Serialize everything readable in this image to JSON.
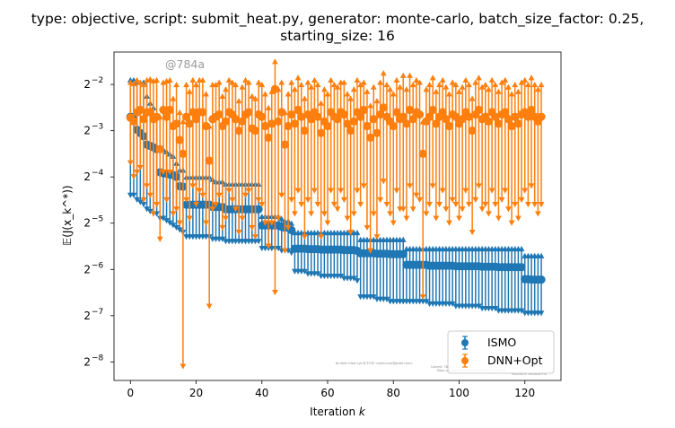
{
  "chart_data": {
    "type": "errorbar",
    "title_line1": "type: objective, script: submit_heat.py, generator: monte-carlo, batch_size_factor: 0.25,",
    "title_line2": "starting_size: 16",
    "xlabel": "Iteration",
    "xlabel_var": "k",
    "ylabel": "𝔼(J(x_k^*))",
    "xlim": [
      -5,
      131
    ],
    "ylim_log2": [
      -8.4,
      -1.3
    ],
    "yscale": "log2",
    "x_ticks": [
      0,
      20,
      40,
      60,
      80,
      100,
      120
    ],
    "y_ticks_exp": [
      -2,
      -3,
      -4,
      -5,
      -6,
      -7,
      -8
    ],
    "y_tick_base": "2",
    "watermark": "@784a",
    "credit_lines": [
      "By Kjetil Olsen Lye @ ETHZ <kjetil.o.lye@gmail.com>",
      "Commit: 784a",
      "Repo: git@github.com:kjetil-lye/learning_airfoils",
      "Hostname: MacBook-Pro"
    ],
    "legend_placement": "lower right",
    "series": [
      {
        "name": "ISMO",
        "color": "#1f77b4",
        "marker": "circle",
        "x": [
          0,
          1,
          2,
          3,
          4,
          5,
          6,
          7,
          8,
          9,
          10,
          11,
          12,
          13,
          14,
          15,
          16,
          17,
          18,
          19,
          20,
          21,
          22,
          23,
          24,
          25,
          26,
          27,
          28,
          29,
          30,
          31,
          32,
          33,
          34,
          35,
          36,
          37,
          38,
          39,
          40,
          41,
          42,
          43,
          44,
          45,
          46,
          47,
          48,
          49,
          50,
          51,
          52,
          53,
          54,
          55,
          56,
          57,
          58,
          59,
          60,
          61,
          62,
          63,
          64,
          65,
          66,
          67,
          68,
          69,
          70,
          71,
          72,
          73,
          74,
          75,
          76,
          77,
          78,
          79,
          80,
          81,
          82,
          83,
          84,
          85,
          86,
          87,
          88,
          89,
          90,
          91,
          92,
          93,
          94,
          95,
          96,
          97,
          98,
          99,
          100,
          101,
          102,
          103,
          104,
          105,
          106,
          107,
          108,
          109,
          110,
          111,
          112,
          113,
          114,
          115,
          116,
          117,
          118,
          119,
          120,
          121,
          122,
          123,
          124,
          125
        ],
        "mean_log2": [
          -2.7,
          -2.7,
          -2.98,
          -3.05,
          -3.12,
          -3.3,
          -3.33,
          -3.36,
          -3.4,
          -3.9,
          -3.92,
          -3.93,
          -3.95,
          -3.96,
          -4.0,
          -4.2,
          -4.21,
          -4.6,
          -4.6,
          -4.6,
          -4.6,
          -4.6,
          -4.6,
          -4.6,
          -4.6,
          -4.65,
          -4.65,
          -4.65,
          -4.65,
          -4.7,
          -4.7,
          -4.7,
          -4.7,
          -4.7,
          -4.7,
          -4.7,
          -4.7,
          -4.7,
          -4.7,
          -4.7,
          -5.05,
          -5.05,
          -5.05,
          -5.05,
          -5.05,
          -5.05,
          -5.08,
          -5.1,
          -5.1,
          -5.15,
          -5.55,
          -5.55,
          -5.55,
          -5.55,
          -5.56,
          -5.56,
          -5.56,
          -5.56,
          -5.57,
          -5.57,
          -5.57,
          -5.57,
          -5.57,
          -5.57,
          -5.57,
          -5.58,
          -5.58,
          -5.58,
          -5.58,
          -5.6,
          -5.65,
          -5.65,
          -5.65,
          -5.65,
          -5.65,
          -5.66,
          -5.66,
          -5.66,
          -5.66,
          -5.67,
          -5.67,
          -5.67,
          -5.67,
          -5.67,
          -5.9,
          -5.9,
          -5.9,
          -5.9,
          -5.9,
          -5.9,
          -5.9,
          -5.92,
          -5.92,
          -5.92,
          -5.92,
          -5.92,
          -5.92,
          -5.92,
          -5.92,
          -5.93,
          -5.93,
          -5.93,
          -5.93,
          -5.93,
          -5.93,
          -5.93,
          -5.93,
          -5.94,
          -5.94,
          -5.94,
          -5.94,
          -5.94,
          -5.95,
          -5.95,
          -5.95,
          -5.95,
          -5.95,
          -5.95,
          -5.95,
          -5.95,
          -6.21,
          -6.21,
          -6.22,
          -6.22,
          -6.22,
          -6.22
        ],
        "upper_log2": [
          -1.9,
          -1.9,
          -1.95,
          -1.95,
          -1.95,
          -2.25,
          -2.4,
          -2.5,
          -2.7,
          -3.4,
          -3.4,
          -3.45,
          -3.5,
          -3.55,
          -3.7,
          -3.85,
          -3.85,
          -4.0,
          -4.0,
          -4.0,
          -4.0,
          -4.0,
          -4.0,
          -4.0,
          -4.0,
          -4.05,
          -4.1,
          -4.1,
          -4.1,
          -4.15,
          -4.15,
          -4.15,
          -4.15,
          -4.15,
          -4.15,
          -4.15,
          -4.15,
          -4.15,
          -4.15,
          -4.15,
          -4.85,
          -4.85,
          -4.85,
          -4.85,
          -4.85,
          -4.85,
          -4.9,
          -4.95,
          -4.95,
          -5.0,
          -5.2,
          -5.2,
          -5.2,
          -5.2,
          -5.2,
          -5.2,
          -5.2,
          -5.2,
          -5.2,
          -5.2,
          -5.2,
          -5.2,
          -5.2,
          -5.2,
          -5.2,
          -5.2,
          -5.2,
          -5.2,
          -5.2,
          -5.2,
          -5.35,
          -5.35,
          -5.35,
          -5.35,
          -5.35,
          -5.35,
          -5.35,
          -5.35,
          -5.35,
          -5.35,
          -5.35,
          -5.35,
          -5.35,
          -5.35,
          -5.55,
          -5.55,
          -5.55,
          -5.55,
          -5.55,
          -5.55,
          -5.55,
          -5.55,
          -5.55,
          -5.55,
          -5.55,
          -5.55,
          -5.55,
          -5.55,
          -5.55,
          -5.55,
          -5.55,
          -5.55,
          -5.55,
          -5.55,
          -5.55,
          -5.55,
          -5.55,
          -5.55,
          -5.55,
          -5.55,
          -5.55,
          -5.55,
          -5.55,
          -5.55,
          -5.55,
          -5.55,
          -5.55,
          -5.55,
          -5.55,
          -5.55,
          -5.7,
          -5.7,
          -5.7,
          -5.7,
          -5.7,
          -5.7
        ],
        "lower_log2": [
          -4.4,
          -4.4,
          -4.5,
          -4.55,
          -4.6,
          -4.7,
          -4.75,
          -4.8,
          -4.8,
          -4.9,
          -4.9,
          -4.95,
          -5.0,
          -5.05,
          -5.1,
          -5.15,
          -5.2,
          -5.3,
          -5.3,
          -5.3,
          -5.3,
          -5.3,
          -5.3,
          -5.3,
          -5.3,
          -5.35,
          -5.35,
          -5.35,
          -5.35,
          -5.4,
          -5.4,
          -5.4,
          -5.4,
          -5.4,
          -5.4,
          -5.4,
          -5.4,
          -5.4,
          -5.4,
          -5.4,
          -5.55,
          -5.55,
          -5.55,
          -5.55,
          -5.55,
          -5.55,
          -5.6,
          -5.6,
          -5.6,
          -5.65,
          -6.05,
          -6.05,
          -6.05,
          -6.05,
          -6.1,
          -6.1,
          -6.1,
          -6.1,
          -6.15,
          -6.15,
          -6.15,
          -6.15,
          -6.15,
          -6.15,
          -6.15,
          -6.2,
          -6.2,
          -6.2,
          -6.2,
          -6.25,
          -6.6,
          -6.6,
          -6.6,
          -6.6,
          -6.6,
          -6.65,
          -6.65,
          -6.65,
          -6.65,
          -6.7,
          -6.7,
          -6.7,
          -6.7,
          -6.7,
          -6.7,
          -6.7,
          -6.7,
          -6.7,
          -6.7,
          -6.7,
          -6.7,
          -6.75,
          -6.75,
          -6.75,
          -6.75,
          -6.75,
          -6.75,
          -6.75,
          -6.75,
          -6.8,
          -6.8,
          -6.8,
          -6.8,
          -6.8,
          -6.8,
          -6.8,
          -6.8,
          -6.85,
          -6.85,
          -6.85,
          -6.85,
          -6.85,
          -6.9,
          -6.9,
          -6.9,
          -6.9,
          -6.9,
          -6.9,
          -6.9,
          -6.9,
          -6.95,
          -6.95,
          -6.95,
          -6.95,
          -6.95,
          -6.95
        ]
      },
      {
        "name": "DNN+Opt",
        "color": "#ff7f0e",
        "marker": "circle",
        "x": [
          0,
          1,
          2,
          3,
          4,
          5,
          6,
          7,
          8,
          9,
          10,
          11,
          12,
          13,
          14,
          15,
          16,
          17,
          18,
          19,
          20,
          21,
          22,
          23,
          24,
          25,
          26,
          27,
          28,
          29,
          30,
          31,
          32,
          33,
          34,
          35,
          36,
          37,
          38,
          39,
          40,
          41,
          42,
          43,
          44,
          45,
          46,
          47,
          48,
          49,
          50,
          51,
          52,
          53,
          54,
          55,
          56,
          57,
          58,
          59,
          60,
          61,
          62,
          63,
          64,
          65,
          66,
          67,
          68,
          69,
          70,
          71,
          72,
          73,
          74,
          75,
          76,
          77,
          78,
          79,
          80,
          81,
          82,
          83,
          84,
          85,
          86,
          87,
          88,
          89,
          90,
          91,
          92,
          93,
          94,
          95,
          96,
          97,
          98,
          99,
          100,
          101,
          102,
          103,
          104,
          105,
          106,
          107,
          108,
          109,
          110,
          111,
          112,
          113,
          114,
          115,
          116,
          117,
          118,
          119,
          120,
          121,
          122,
          123,
          124,
          125
        ],
        "mean_log2": [
          -2.72,
          -2.8,
          -2.6,
          -2.55,
          -2.75,
          -2.6,
          -2.6,
          -2.75,
          -2.7,
          -3.4,
          -2.55,
          -2.7,
          -2.55,
          -2.9,
          -2.85,
          -3.2,
          -3.5,
          -2.7,
          -2.85,
          -2.6,
          -2.75,
          -2.6,
          -2.6,
          -2.9,
          -3.65,
          -2.75,
          -2.7,
          -2.65,
          -2.9,
          -2.8,
          -2.6,
          -2.65,
          -2.75,
          -3.0,
          -2.8,
          -2.65,
          -2.6,
          -2.95,
          -3.0,
          -2.65,
          -2.7,
          -2.9,
          -3.15,
          -2.85,
          -2.1,
          -2.8,
          -2.6,
          -3.3,
          -2.9,
          -2.65,
          -2.85,
          -2.55,
          -2.7,
          -3.0,
          -2.65,
          -2.75,
          -2.6,
          -2.7,
          -3.05,
          -2.8,
          -2.9,
          -2.6,
          -2.7,
          -2.75,
          -2.6,
          -2.65,
          -2.85,
          -3.0,
          -2.8,
          -2.6,
          -2.7,
          -2.55,
          -2.9,
          -3.15,
          -2.75,
          -3.05,
          -2.65,
          -2.5,
          -2.7,
          -2.8,
          -2.9,
          -2.6,
          -2.75,
          -2.7,
          -2.85,
          -2.55,
          -2.75,
          -2.6,
          -2.65,
          -3.5,
          -2.8,
          -2.7,
          -2.55,
          -2.85,
          -2.7,
          -2.6,
          -2.75,
          -2.9,
          -2.65,
          -2.7,
          -2.85,
          -2.75,
          -2.6,
          -2.7,
          -3.0,
          -2.65,
          -2.55,
          -2.75,
          -2.7,
          -2.8,
          -2.6,
          -2.7,
          -2.85,
          -2.65,
          -2.6,
          -2.75,
          -2.9,
          -2.7,
          -2.85,
          -2.65,
          -2.6,
          -2.7,
          -2.55,
          -2.7,
          -2.8,
          -2.7
        ],
        "upper_log2": [
          -1.95,
          -1.98,
          -1.9,
          -1.95,
          -2.0,
          -1.9,
          -1.88,
          -1.92,
          -1.9,
          -2.7,
          -1.95,
          -1.92,
          -1.9,
          -2.3,
          -2.0,
          -2.6,
          -2.8,
          -2.0,
          -2.15,
          -1.9,
          -2.0,
          -1.9,
          -1.9,
          -2.2,
          -2.9,
          -2.0,
          -2.0,
          -1.95,
          -2.25,
          -2.1,
          -1.9,
          -1.95,
          -2.0,
          -2.35,
          -2.05,
          -1.9,
          -1.95,
          -2.25,
          -2.3,
          -1.95,
          -2.0,
          -2.2,
          -2.5,
          -2.15,
          -1.5,
          -2.1,
          -1.95,
          -2.6,
          -2.2,
          -1.95,
          -2.1,
          -1.85,
          -2.0,
          -2.3,
          -1.95,
          -2.05,
          -1.9,
          -2.0,
          -2.4,
          -2.1,
          -2.2,
          -1.9,
          -2.0,
          -2.05,
          -1.95,
          -1.95,
          -2.2,
          -2.3,
          -2.1,
          -1.9,
          -2.0,
          -1.95,
          -2.15,
          -2.45,
          -2.05,
          -2.35,
          -1.95,
          -1.75,
          -2.0,
          -2.1,
          -2.2,
          -1.9,
          -2.05,
          -1.8,
          -2.1,
          -1.8,
          -2.0,
          -1.9,
          -1.95,
          -2.8,
          -2.1,
          -2.0,
          -1.85,
          -2.15,
          -2.0,
          -1.9,
          -2.05,
          -2.2,
          -1.95,
          -2.0,
          -2.15,
          -2.05,
          -1.9,
          -2.0,
          -2.3,
          -1.95,
          -1.85,
          -2.05,
          -2.0,
          -2.1,
          -1.9,
          -2.0,
          -2.15,
          -1.95,
          -1.9,
          -2.05,
          -2.2,
          -2.0,
          -2.15,
          -1.95,
          -1.9,
          -2.0,
          -1.85,
          -2.0,
          -2.1,
          -2.0
        ],
        "lower_log2": [
          -3.7,
          -4.0,
          -3.9,
          -3.8,
          -4.5,
          -4.2,
          -4.4,
          -4.8,
          -4.6,
          -5.35,
          -3.9,
          -4.5,
          -3.9,
          -4.8,
          -4.7,
          -5.0,
          -8.1,
          -4.5,
          -4.9,
          -4.2,
          -4.6,
          -4.3,
          -4.4,
          -5.0,
          -6.8,
          -4.7,
          -4.6,
          -4.4,
          -5.1,
          -4.9,
          -4.3,
          -4.5,
          -4.7,
          -5.2,
          -4.9,
          -4.4,
          -4.3,
          -5.1,
          -5.3,
          -4.5,
          -4.6,
          -5.0,
          -5.5,
          -5.0,
          -6.5,
          -4.9,
          -4.4,
          -5.6,
          -5.1,
          -4.5,
          -4.8,
          -4.3,
          -4.6,
          -5.3,
          -4.5,
          -4.8,
          -4.3,
          -4.6,
          -5.3,
          -4.8,
          -5.0,
          -4.3,
          -4.6,
          -4.7,
          -4.3,
          -4.5,
          -4.9,
          -5.2,
          -4.8,
          -4.3,
          -4.6,
          -4.2,
          -5.1,
          -5.6,
          -4.8,
          -5.3,
          -4.5,
          -4.1,
          -4.6,
          -4.8,
          -5.0,
          -4.3,
          -4.7,
          -4.7,
          -4.9,
          -4.2,
          -4.7,
          -4.4,
          -4.5,
          -6.6,
          -4.8,
          -4.6,
          -4.2,
          -4.9,
          -4.6,
          -4.3,
          -4.7,
          -5.0,
          -4.5,
          -4.6,
          -4.9,
          -4.7,
          -4.3,
          -4.6,
          -5.2,
          -4.5,
          -4.2,
          -4.7,
          -4.6,
          -4.8,
          -4.3,
          -4.6,
          -4.9,
          -4.5,
          -4.3,
          -4.7,
          -5.0,
          -4.6,
          -4.9,
          -4.5,
          -4.3,
          -4.6,
          -4.2,
          -4.6,
          -4.8,
          -4.6
        ]
      }
    ]
  }
}
